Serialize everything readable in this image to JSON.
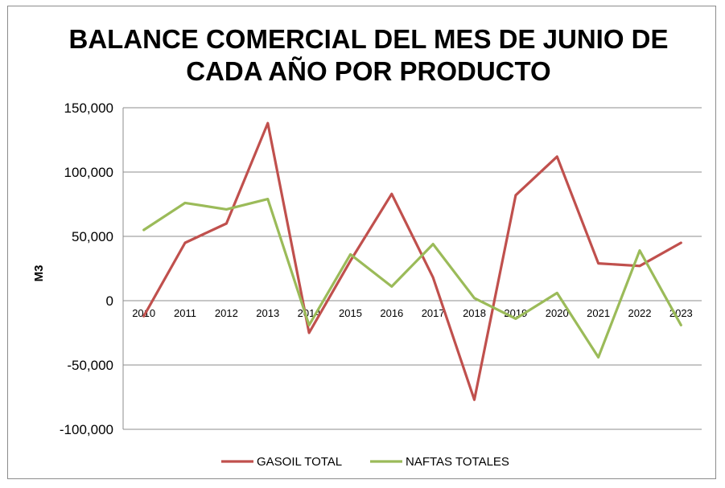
{
  "chart_data": {
    "type": "line",
    "title_line1": "BALANCE COMERCIAL DEL MES DE JUNIO DE",
    "title_line2": "CADA AÑO POR PRODUCTO",
    "xlabel": "",
    "ylabel": "M3",
    "ylim": [
      -100000,
      150000
    ],
    "yticks": [
      -100000,
      -50000,
      0,
      50000,
      100000,
      150000
    ],
    "ytick_labels": [
      "-100,000",
      "-50,000",
      "0",
      "50,000",
      "100,000",
      "150,000"
    ],
    "categories": [
      "2010",
      "2011",
      "2012",
      "2013",
      "2014",
      "2015",
      "2016",
      "2017",
      "2018",
      "2019",
      "2020",
      "2021",
      "2022",
      "2023"
    ],
    "series": [
      {
        "name": "GASOIL TOTAL",
        "color": "#c0504d",
        "values": [
          -12000,
          45000,
          60000,
          138000,
          -25000,
          31000,
          83000,
          18000,
          -77000,
          82000,
          112000,
          29000,
          27000,
          45000
        ]
      },
      {
        "name": "NAFTAS TOTALES",
        "color": "#9bbb59",
        "values": [
          55000,
          76000,
          71000,
          79000,
          -19000,
          36000,
          11000,
          44000,
          2000,
          -14000,
          6000,
          -44000,
          39000,
          -19000
        ]
      }
    ],
    "grid": true,
    "legend_position": "bottom"
  }
}
